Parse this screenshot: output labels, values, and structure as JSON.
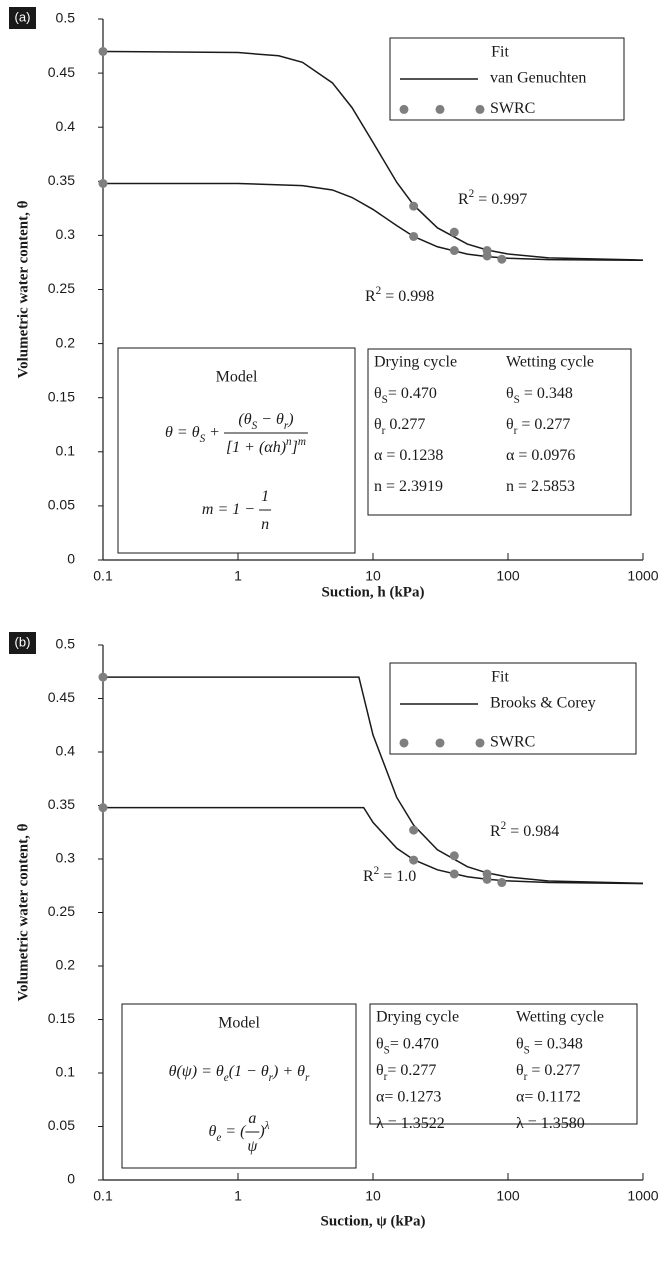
{
  "chart_data": [
    {
      "type": "line",
      "panel_label": "(a)",
      "xlabel": "Suction, h (kPa)",
      "ylabel": "Volumetric water content, θ",
      "xscale": "log",
      "xlim": [
        0.1,
        1000
      ],
      "xticks": [
        0.1,
        1,
        10,
        100,
        1000
      ],
      "ylim": [
        0,
        0.5
      ],
      "yticks": [
        0,
        0.05,
        0.1,
        0.15,
        0.2,
        0.25,
        0.3,
        0.35,
        0.4,
        0.45,
        0.5
      ],
      "legend_title": "Fit",
      "legend_position": "upper right",
      "series": [
        {
          "name": "van Genuchten",
          "color": "#1a1a1a",
          "marker": "line",
          "x": [
            0.1,
            1,
            2,
            3,
            5,
            7,
            10,
            15,
            20,
            30,
            50,
            70,
            100,
            200,
            1000
          ],
          "values": [
            0.47,
            0.469,
            0.466,
            0.46,
            0.441,
            0.418,
            0.386,
            0.349,
            0.328,
            0.307,
            0.292,
            0.2865,
            0.2828,
            0.2792,
            0.2772
          ]
        },
        {
          "color": "#1a1a1a",
          "marker": "line",
          "x": [
            0.1,
            1,
            3,
            5,
            7,
            10,
            15,
            20,
            30,
            50,
            70,
            100,
            200,
            1000
          ],
          "values": [
            0.348,
            0.348,
            0.346,
            0.342,
            0.335,
            0.324,
            0.309,
            0.299,
            0.2895,
            0.2827,
            0.2804,
            0.2789,
            0.2776,
            0.277
          ]
        },
        {
          "name": "SWRC",
          "color": "#7f7f7f",
          "marker": "circle",
          "x": [
            0.1,
            20,
            40,
            70,
            90
          ],
          "values": [
            0.47,
            0.327,
            0.303,
            0.286,
            0.278
          ]
        },
        {
          "color": "#7f7f7f",
          "marker": "circle",
          "x": [
            0.1,
            20,
            40,
            70
          ],
          "values": [
            0.348,
            0.299,
            0.286,
            0.281
          ]
        }
      ],
      "annotations": [
        [
          "R",
          {
            "sup": "2"
          },
          " = 0.997"
        ],
        [
          "R",
          {
            "sup": "2"
          },
          " = 0.998"
        ]
      ],
      "model": {
        "title": "Model",
        "lines": [
          {
            "lhs": [
              "θ = θ",
              {
                "sub": "S"
              },
              " + "
            ],
            "num": [
              "(θ",
              {
                "sub": "S"
              },
              " − θ",
              {
                "sub": "r"
              },
              ")"
            ],
            "den": [
              "[1 + (αh)",
              {
                "sup": "n"
              },
              "]",
              {
                "sup": "m"
              }
            ]
          },
          {
            "lhs": [
              "m = 1 − "
            ],
            "num": [
              "1"
            ],
            "den": [
              "n"
            ]
          }
        ]
      },
      "table": {
        "columns": [
          "Drying cycle",
          "Wetting cycle"
        ],
        "rows": [
          [
            [
              "θ",
              {
                "sub": "S"
              },
              "= 0.470"
            ],
            [
              "θ",
              {
                "sub": "S"
              },
              " = 0.348"
            ]
          ],
          [
            [
              "θ",
              {
                "sub": "r"
              },
              " 0.277"
            ],
            [
              "θ",
              {
                "sub": "r"
              },
              " = 0.277"
            ]
          ],
          [
            [
              "α = 0.1238"
            ],
            [
              "α = 0.0976"
            ]
          ],
          [
            [
              "n = 2.3919"
            ],
            [
              "n = 2.5853"
            ]
          ]
        ]
      }
    },
    {
      "type": "line",
      "panel_label": "(b)",
      "xlabel": "Suction, ψ (kPa)",
      "ylabel": "Volumetric water content, θ",
      "xscale": "log",
      "xlim": [
        0.1,
        1000
      ],
      "xticks": [
        0.1,
        1,
        10,
        100,
        1000
      ],
      "ylim": [
        0,
        0.5
      ],
      "yticks": [
        0,
        0.05,
        0.1,
        0.15,
        0.2,
        0.25,
        0.3,
        0.35,
        0.4,
        0.45,
        0.5
      ],
      "legend_title": "Fit",
      "legend_position": "upper right",
      "series": [
        {
          "name": "Brooks & Corey",
          "color": "#1a1a1a",
          "marker": "line",
          "x": [
            0.1,
            7.86,
            10,
            15,
            20,
            30,
            50,
            70,
            100,
            200,
            1000
          ],
          "values": [
            0.47,
            0.47,
            0.416,
            0.3575,
            0.3316,
            0.3086,
            0.2928,
            0.287,
            0.2832,
            0.2794,
            0.2773
          ]
        },
        {
          "color": "#1a1a1a",
          "marker": "line",
          "x": [
            0.1,
            8.53,
            10,
            15,
            20,
            30,
            50,
            70,
            100,
            200,
            1000
          ],
          "values": [
            0.348,
            0.348,
            0.3342,
            0.31,
            0.2993,
            0.2899,
            0.2834,
            0.2811,
            0.2795,
            0.278,
            0.277
          ]
        },
        {
          "name": "SWRC",
          "color": "#7f7f7f",
          "marker": "circle",
          "x": [
            0.1,
            20,
            40,
            70,
            90
          ],
          "values": [
            0.47,
            0.327,
            0.303,
            0.286,
            0.278
          ]
        },
        {
          "color": "#7f7f7f",
          "marker": "circle",
          "x": [
            0.1,
            20,
            40,
            70
          ],
          "values": [
            0.348,
            0.299,
            0.286,
            0.281
          ]
        }
      ],
      "annotations": [
        [
          "R",
          {
            "sup": "2"
          },
          " = 0.984"
        ],
        [
          "R",
          {
            "sup": "2"
          },
          " = 1.0"
        ]
      ],
      "model": {
        "title": "Model",
        "lines": [
          {
            "lhs": [
              "θ(ψ) = θ",
              {
                "sub": "e"
              },
              "(1 − θ",
              {
                "sub": "r"
              },
              ") + θ",
              {
                "sub": "r"
              }
            ]
          },
          {
            "lhs": [
              "θ",
              {
                "sub": "e"
              },
              " = ("
            ],
            "num": [
              "a"
            ],
            "den": [
              "ψ"
            ],
            "rhs": [
              ")",
              {
                "sup": "λ"
              }
            ]
          }
        ]
      },
      "table": {
        "columns": [
          "Drying cycle",
          "Wetting cycle"
        ],
        "rows": [
          [
            [
              "θ",
              {
                "sub": "S"
              },
              "= 0.470"
            ],
            [
              "θ",
              {
                "sub": "S"
              },
              " = 0.348"
            ]
          ],
          [
            [
              "θ",
              {
                "sub": "r"
              },
              "= 0.277"
            ],
            [
              "θ",
              {
                "sub": "r"
              },
              " = 0.277"
            ]
          ],
          [
            [
              "α= 0.1273"
            ],
            [
              "α= 0.1172"
            ]
          ],
          [
            [
              "λ = 1.3522"
            ],
            [
              "λ = 1.3580"
            ]
          ]
        ]
      }
    }
  ]
}
